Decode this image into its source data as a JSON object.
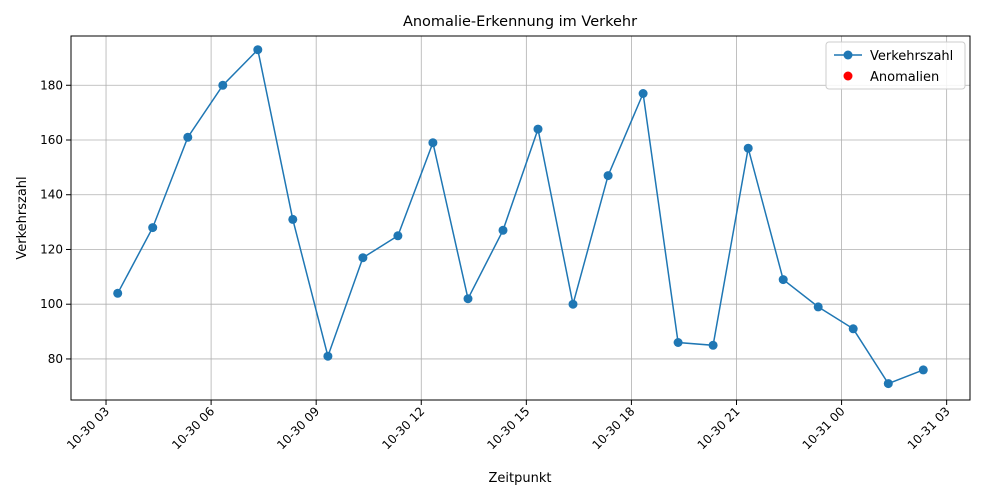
{
  "chart_data": {
    "type": "line",
    "title": "Anomalie-Erkennung im Verkehr",
    "xlabel": "Zeitpunkt",
    "ylabel": "Verkehrszahl",
    "grid": true,
    "legend_position": "top-right",
    "xlim": [
      "2023-10-30 02:00",
      "2023-10-31 03:40"
    ],
    "ylim": [
      65,
      198
    ],
    "x_ticks": [
      "10-30 03",
      "10-30 06",
      "10-30 09",
      "10-30 12",
      "10-30 15",
      "10-30 18",
      "10-30 21",
      "10-31 00",
      "10-31 03"
    ],
    "y_ticks": [
      80,
      100,
      120,
      140,
      160,
      180
    ],
    "colors": {
      "series": "#1f77b4",
      "anomalies": "#ff0000"
    },
    "series": [
      {
        "name": "Verkehrszahl",
        "x": [
          "2023-10-30 03:20",
          "2023-10-30 04:20",
          "2023-10-30 05:20",
          "2023-10-30 06:20",
          "2023-10-30 07:20",
          "2023-10-30 08:20",
          "2023-10-30 09:20",
          "2023-10-30 10:20",
          "2023-10-30 11:20",
          "2023-10-30 12:20",
          "2023-10-30 13:20",
          "2023-10-30 14:20",
          "2023-10-30 15:20",
          "2023-10-30 16:20",
          "2023-10-30 17:20",
          "2023-10-30 18:20",
          "2023-10-30 19:20",
          "2023-10-30 20:20",
          "2023-10-30 21:20",
          "2023-10-30 22:20",
          "2023-10-30 23:20",
          "2023-10-31 00:20",
          "2023-10-31 01:20",
          "2023-10-31 02:20"
        ],
        "values": [
          104,
          128,
          161,
          180,
          193,
          131,
          81,
          117,
          125,
          159,
          102,
          127,
          164,
          100,
          147,
          177,
          86,
          85,
          157,
          109,
          99,
          91,
          71,
          76
        ]
      },
      {
        "name": "Anomalien",
        "x": [],
        "values": []
      }
    ]
  }
}
